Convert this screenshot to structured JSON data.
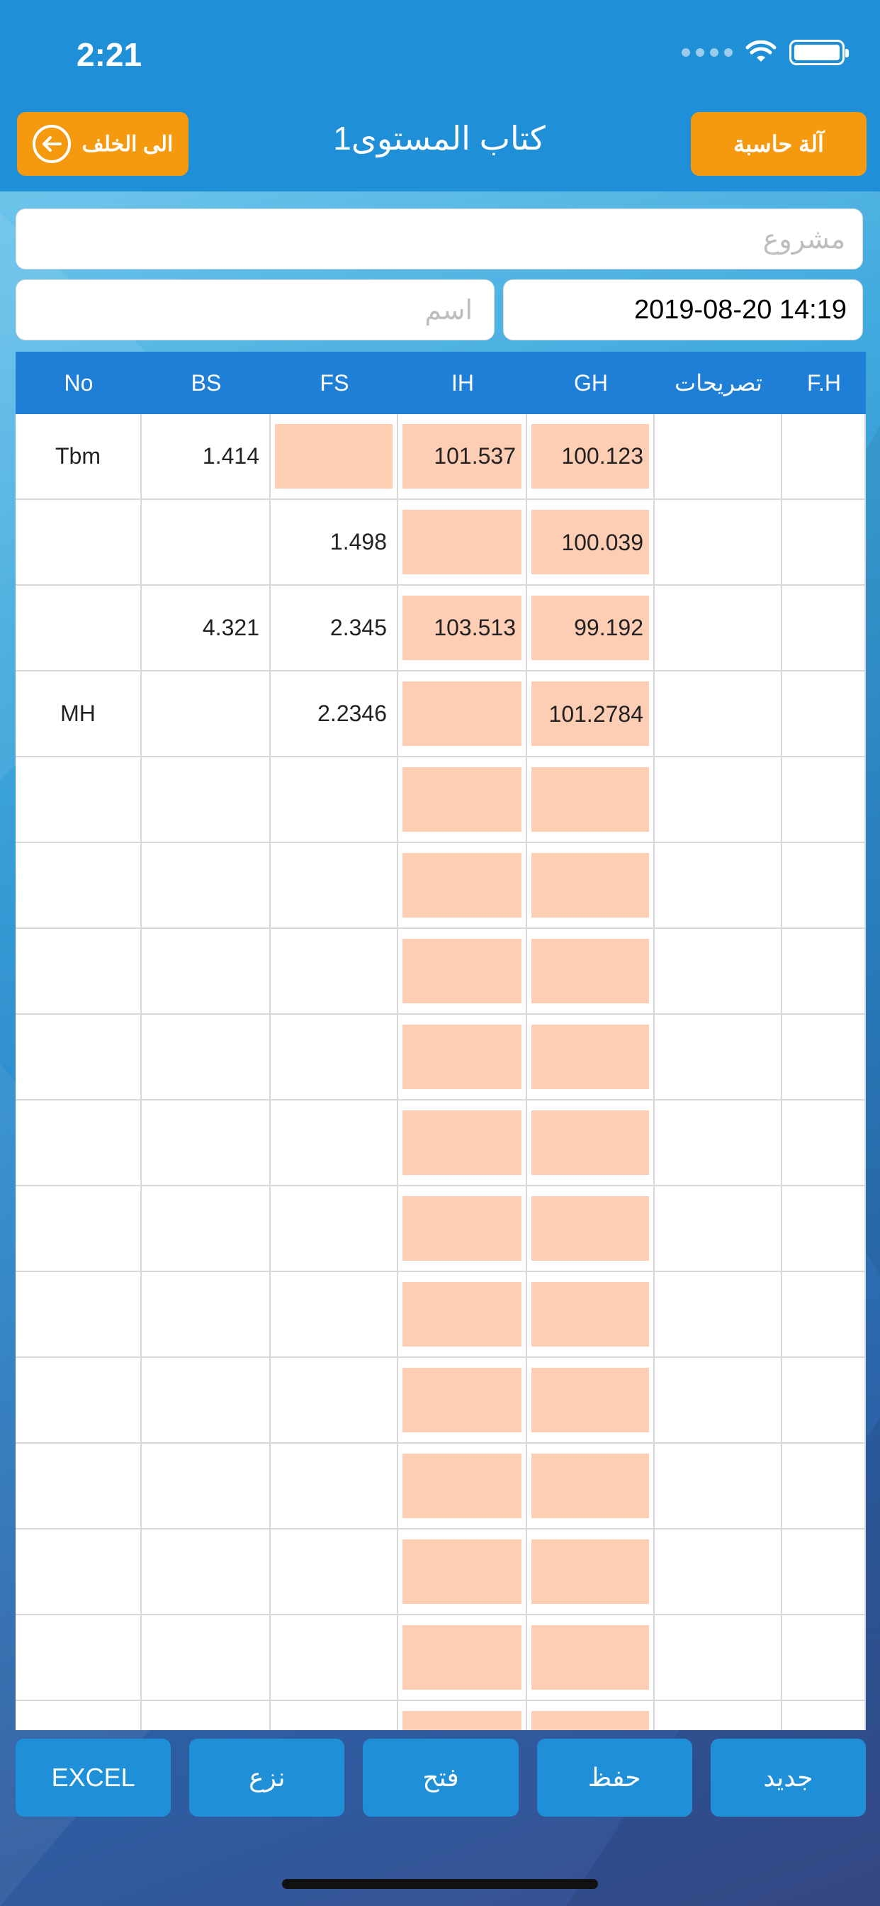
{
  "status": {
    "time": "2:21"
  },
  "header": {
    "back_label": "الى الخلف",
    "title": "1كتاب المستوى",
    "calc_label": "آلة حاسبة"
  },
  "form": {
    "project_placeholder": "مشروع",
    "name_placeholder": "اسم",
    "date_value": "2019-08-20 14:19"
  },
  "table": {
    "columns": [
      "No",
      "BS",
      "FS",
      "IH",
      "GH",
      "تصريحات",
      "F.H"
    ],
    "rows": [
      [
        "Tbm",
        "1.414",
        "",
        "101.537",
        "100.123",
        "",
        ""
      ],
      [
        "",
        "",
        "1.498",
        "",
        "100.039",
        "",
        ""
      ],
      [
        "",
        "4.321",
        "2.345",
        "103.513",
        "99.192",
        "",
        ""
      ],
      [
        "MH",
        "",
        "2.2346",
        "",
        "101.2784",
        "",
        ""
      ],
      [
        "",
        "",
        "",
        "",
        "",
        "",
        ""
      ],
      [
        "",
        "",
        "",
        "",
        "",
        "",
        ""
      ],
      [
        "",
        "",
        "",
        "",
        "",
        "",
        ""
      ],
      [
        "",
        "",
        "",
        "",
        "",
        "",
        ""
      ],
      [
        "",
        "",
        "",
        "",
        "",
        "",
        ""
      ],
      [
        "",
        "",
        "",
        "",
        "",
        "",
        ""
      ],
      [
        "",
        "",
        "",
        "",
        "",
        "",
        ""
      ],
      [
        "",
        "",
        "",
        "",
        "",
        "",
        ""
      ],
      [
        "",
        "",
        "",
        "",
        "",
        "",
        ""
      ],
      [
        "",
        "",
        "",
        "",
        "",
        "",
        ""
      ],
      [
        "",
        "",
        "",
        "",
        "",
        "",
        ""
      ],
      [
        "",
        "",
        "",
        "",
        "",
        "",
        ""
      ]
    ]
  },
  "toolbar": {
    "excel": "EXCEL",
    "remove": "نزع",
    "open": "فتح",
    "save": "حفظ",
    "new": "جديد"
  },
  "colors": {
    "header_bg": "#1f8fd8",
    "accent_orange": "#f59a0f",
    "table_header": "#1f7ed6",
    "highlight_cell": "#fdcdb4"
  }
}
